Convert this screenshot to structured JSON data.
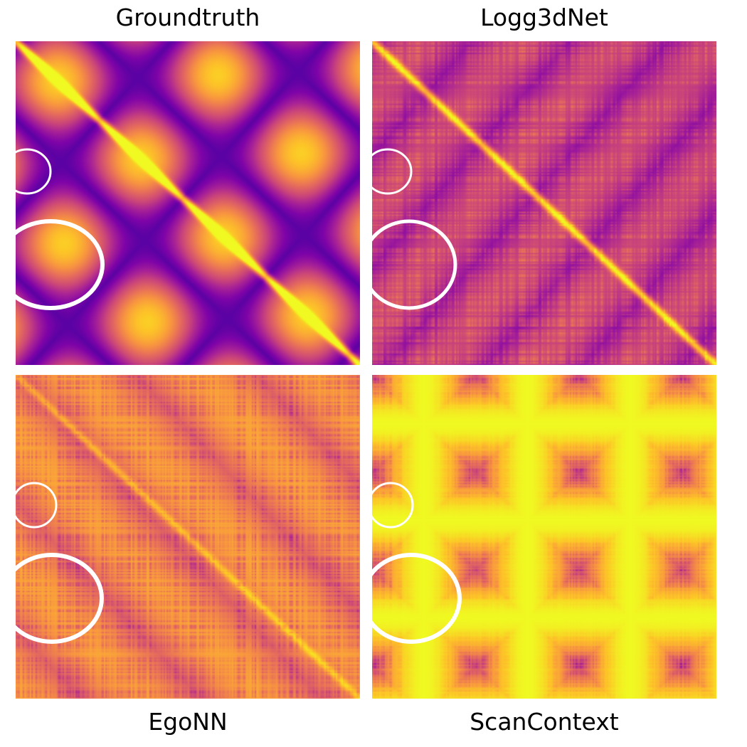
{
  "chart_data": [
    {
      "type": "heatmap",
      "title": "Groundtruth",
      "colormap": "plasma",
      "style": "smooth",
      "highlight_color": "#ffffff"
    },
    {
      "type": "heatmap",
      "title": "Logg3dNet",
      "colormap": "plasma",
      "style": "noisy",
      "highlight_color": "#ffffff"
    },
    {
      "type": "heatmap",
      "title": "EgoNN",
      "colormap": "plasma",
      "style": "bright-noisy",
      "highlight_color": "#ffffff"
    },
    {
      "type": "heatmap",
      "title": "ScanContext",
      "colormap": "plasma",
      "style": "saturated",
      "highlight_color": "#ffffff"
    }
  ]
}
